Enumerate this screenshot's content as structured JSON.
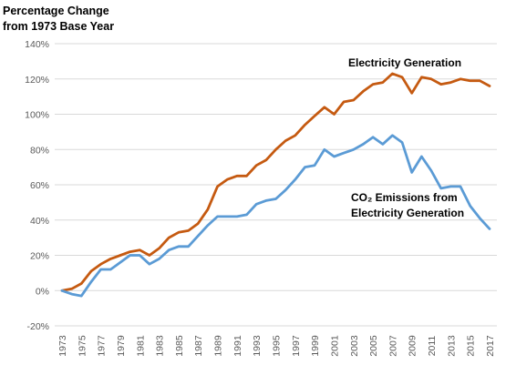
{
  "chart_data": {
    "type": "line",
    "ylabel_lines": [
      "Percentage Change",
      "from 1973 Base Year"
    ],
    "ylim": [
      -20,
      140
    ],
    "yticks": [
      -20,
      0,
      20,
      40,
      60,
      80,
      100,
      120,
      140
    ],
    "ytick_labels": [
      "-20%",
      "0%",
      "20%",
      "40%",
      "60%",
      "80%",
      "100%",
      "120%",
      "140%"
    ],
    "x": [
      1973,
      1974,
      1975,
      1976,
      1977,
      1978,
      1979,
      1980,
      1981,
      1982,
      1983,
      1984,
      1985,
      1986,
      1987,
      1988,
      1989,
      1990,
      1991,
      1992,
      1993,
      1994,
      1995,
      1996,
      1997,
      1998,
      1999,
      2000,
      2001,
      2002,
      2003,
      2004,
      2005,
      2006,
      2007,
      2008,
      2009,
      2010,
      2011,
      2012,
      2013,
      2014,
      2015,
      2016,
      2017
    ],
    "xtick_labels": [
      "1973",
      "1975",
      "1977",
      "1979",
      "1981",
      "1983",
      "1985",
      "1987",
      "1989",
      "1991",
      "1993",
      "1995",
      "1997",
      "1999",
      "2001",
      "2003",
      "2005",
      "2007",
      "2009",
      "2011",
      "2013",
      "2015",
      "2017"
    ],
    "grid": true,
    "series": [
      {
        "name": "Electricity Generation",
        "color": "#C55A11",
        "values": [
          0,
          1,
          4,
          11,
          15,
          18,
          20,
          22,
          23,
          20,
          24,
          30,
          33,
          34,
          38,
          46,
          59,
          63,
          65,
          65,
          71,
          74,
          80,
          85,
          88,
          94,
          99,
          104,
          100,
          107,
          108,
          113,
          117,
          118,
          123,
          121,
          112,
          121,
          120,
          117,
          118,
          120,
          119,
          119,
          116
        ]
      },
      {
        "name_lines": [
          "CO₂ Emissions from",
          "Electricity Generation"
        ],
        "color": "#5B9BD5",
        "values": [
          0,
          -2,
          -3,
          5,
          12,
          12,
          16,
          20,
          20,
          15,
          18,
          23,
          25,
          25,
          31,
          37,
          42,
          42,
          42,
          43,
          49,
          51,
          52,
          57,
          63,
          70,
          71,
          80,
          76,
          78,
          80,
          83,
          87,
          83,
          88,
          84,
          67,
          76,
          68,
          58,
          59,
          59,
          48,
          41,
          35
        ]
      }
    ]
  }
}
